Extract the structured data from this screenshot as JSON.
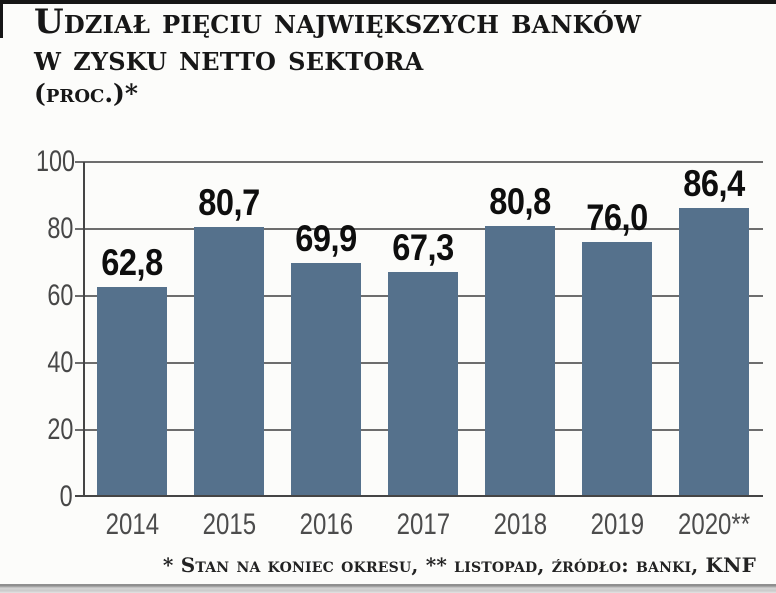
{
  "title": {
    "line1": "Udział pięciu największych banków",
    "line2": "w zysku netto sektora",
    "line3": "(proc.)*"
  },
  "footnote": "* Stan na koniec okresu, ** listopad, źródło: banki, KNF",
  "chart_data": {
    "type": "bar",
    "title": "Udział pięciu największych banków w zysku netto sektora (proc.)*",
    "categories": [
      "2014",
      "2015",
      "2016",
      "2017",
      "2018",
      "2019",
      "2020**"
    ],
    "values": [
      62.8,
      80.7,
      69.9,
      67.3,
      80.8,
      76.0,
      86.4
    ],
    "value_labels": [
      "62,8",
      "80,7",
      "69,9",
      "67,3",
      "80,8",
      "76,0",
      "86,4"
    ],
    "xlabel": "",
    "ylabel": "",
    "ylim": [
      0,
      100
    ],
    "yticks": [
      0,
      20,
      40,
      60,
      80,
      100
    ],
    "grid": true,
    "legend": false,
    "source_note": "* Stan na koniec okresu, ** listopad, źródło: banki, KNF",
    "bar_color": "#55718c"
  },
  "colors": {
    "bar": "#55718c",
    "gridline": "#6d6d6d",
    "axis": "#454545",
    "title_text": "#171717",
    "tick_text": "#474747",
    "year_text": "#4c4c4c",
    "value_text": "#0e0e0e",
    "top_border": "#161616",
    "background": "#fcfcfa"
  }
}
